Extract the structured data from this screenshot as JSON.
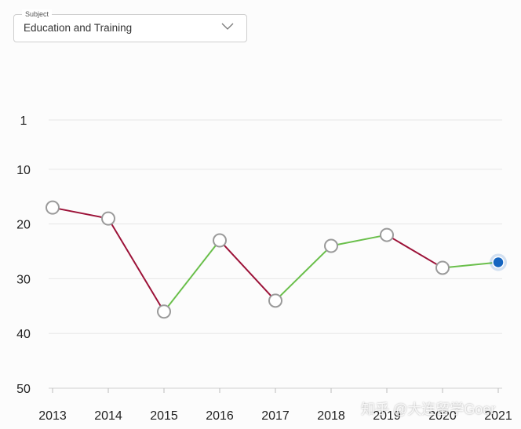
{
  "subject": {
    "legend": "Subject",
    "value": "Education and Training",
    "icon": "chevron-down-icon"
  },
  "chart_data": {
    "type": "line",
    "title": "",
    "xlabel": "",
    "ylabel": "",
    "x": [
      "2013",
      "2014",
      "2015",
      "2016",
      "2017",
      "2018",
      "2019",
      "2020",
      "2021"
    ],
    "series": [
      {
        "values": [
          17,
          19,
          36,
          23,
          34,
          24,
          22,
          28,
          27
        ]
      }
    ],
    "y_ticks": [
      1,
      10,
      20,
      30,
      40,
      50
    ],
    "ylim": [
      1,
      50
    ],
    "y_inverted": true,
    "grid": true,
    "colors": {
      "improve": "#6abf4b",
      "decline": "#9c1238",
      "point_fill": "#ffffff",
      "point_stroke": "#9a9a9a",
      "current_point": "#1565c0",
      "gridline": "#e6e6e6"
    }
  },
  "watermark": "知乎 @大连留学Goer"
}
